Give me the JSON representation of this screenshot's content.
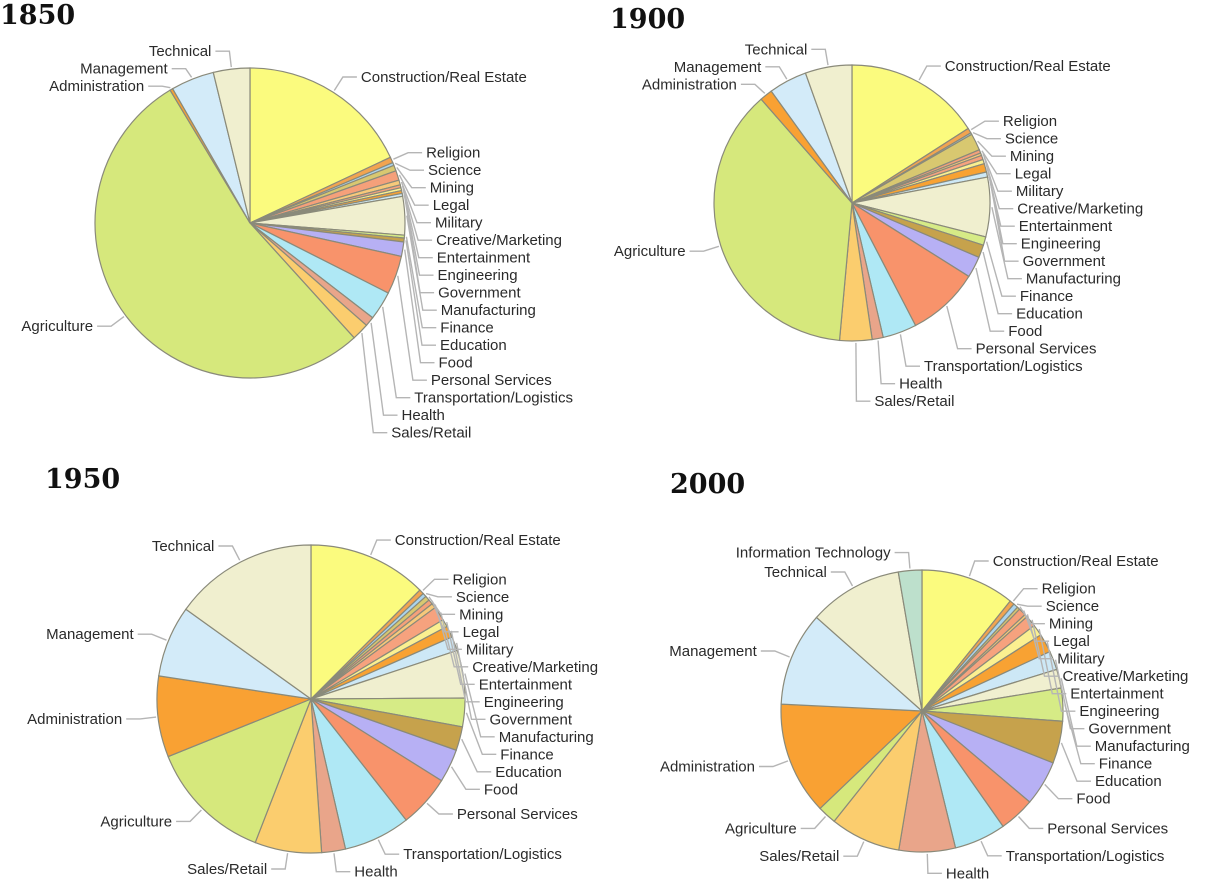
{
  "categories": [
    "Construction/Real Estate",
    "Religion",
    "Science",
    "Mining",
    "Legal",
    "Military",
    "Creative/Marketing",
    "Entertainment",
    "Engineering",
    "Government",
    "Manufacturing",
    "Finance",
    "Education",
    "Food",
    "Personal Services",
    "Transportation/Logistics",
    "Health",
    "Sales/Retail",
    "Agriculture",
    "Administration",
    "Management",
    "Technical",
    "Information Technology"
  ],
  "colors": {
    "Construction/Real Estate": "#fbfb7e",
    "Religion": "#f2a450",
    "Science": "#aad4ee",
    "Mining": "#d8c870",
    "Legal": "#f5a07a",
    "Military": "#f7c97a",
    "Creative/Marketing": "#f6a27e",
    "Entertainment": "#fbf090",
    "Engineering": "#f8a233",
    "Government": "#cde8f6",
    "Manufacturing": "#f0efcf",
    "Finance": "#d6eb86",
    "Education": "#c6a24c",
    "Food": "#b7b0f4",
    "Personal Services": "#f8936b",
    "Transportation/Logistics": "#afe8f5",
    "Health": "#e9a58a",
    "Sales/Retail": "#fbcd6e",
    "Agriculture": "#d6e87c",
    "Administration": "#f9a133",
    "Management": "#d3ebf9",
    "Technical": "#f0efcf",
    "Information Technology": "#bde0cc"
  },
  "chart_data": [
    {
      "type": "pie",
      "title": "1850",
      "slices": [
        {
          "label": "Construction/Real Estate",
          "value": 18.0
        },
        {
          "label": "Religion",
          "value": 0.6
        },
        {
          "label": "Science",
          "value": 0.3
        },
        {
          "label": "Mining",
          "value": 0.6
        },
        {
          "label": "Legal",
          "value": 1.0
        },
        {
          "label": "Military",
          "value": 0.5
        },
        {
          "label": "Creative/Marketing",
          "value": 0.3
        },
        {
          "label": "Entertainment",
          "value": 0.3
        },
        {
          "label": "Engineering",
          "value": 0.3
        },
        {
          "label": "Government",
          "value": 0.3
        },
        {
          "label": "Manufacturing",
          "value": 4.0
        },
        {
          "label": "Finance",
          "value": 0.3
        },
        {
          "label": "Education",
          "value": 0.4
        },
        {
          "label": "Food",
          "value": 1.5
        },
        {
          "label": "Personal Services",
          "value": 4.0
        },
        {
          "label": "Transportation/Logistics",
          "value": 3.0
        },
        {
          "label": "Health",
          "value": 1.0
        },
        {
          "label": "Sales/Retail",
          "value": 1.8
        },
        {
          "label": "Agriculture",
          "value": 53.0
        },
        {
          "label": "Administration",
          "value": 0.3
        },
        {
          "label": "Management",
          "value": 4.5
        },
        {
          "label": "Technical",
          "value": 3.8
        }
      ]
    },
    {
      "type": "pie",
      "title": "1900",
      "slices": [
        {
          "label": "Construction/Real Estate",
          "value": 16.0
        },
        {
          "label": "Religion",
          "value": 0.6
        },
        {
          "label": "Science",
          "value": 0.2
        },
        {
          "label": "Mining",
          "value": 2.0
        },
        {
          "label": "Legal",
          "value": 0.4
        },
        {
          "label": "Military",
          "value": 0.3
        },
        {
          "label": "Creative/Marketing",
          "value": 0.5
        },
        {
          "label": "Entertainment",
          "value": 0.5
        },
        {
          "label": "Engineering",
          "value": 1.0
        },
        {
          "label": "Government",
          "value": 0.6
        },
        {
          "label": "Manufacturing",
          "value": 7.0
        },
        {
          "label": "Finance",
          "value": 1.0
        },
        {
          "label": "Education",
          "value": 1.5
        },
        {
          "label": "Food",
          "value": 2.5
        },
        {
          "label": "Personal Services",
          "value": 8.5
        },
        {
          "label": "Transportation/Logistics",
          "value": 4.0
        },
        {
          "label": "Health",
          "value": 1.3
        },
        {
          "label": "Sales/Retail",
          "value": 3.8
        },
        {
          "label": "Agriculture",
          "value": 37.3
        },
        {
          "label": "Administration",
          "value": 1.5
        },
        {
          "label": "Management",
          "value": 4.5
        },
        {
          "label": "Technical",
          "value": 5.5
        }
      ]
    },
    {
      "type": "pie",
      "title": "1950",
      "slices": [
        {
          "label": "Construction/Real Estate",
          "value": 12.5
        },
        {
          "label": "Religion",
          "value": 0.5
        },
        {
          "label": "Science",
          "value": 0.4
        },
        {
          "label": "Mining",
          "value": 0.5
        },
        {
          "label": "Legal",
          "value": 0.5
        },
        {
          "label": "Military",
          "value": 0.5
        },
        {
          "label": "Creative/Marketing",
          "value": 1.5
        },
        {
          "label": "Entertainment",
          "value": 0.8
        },
        {
          "label": "Engineering",
          "value": 1.2
        },
        {
          "label": "Government",
          "value": 1.5
        },
        {
          "label": "Manufacturing",
          "value": 5.0
        },
        {
          "label": "Finance",
          "value": 3.0
        },
        {
          "label": "Education",
          "value": 2.5
        },
        {
          "label": "Food",
          "value": 3.5
        },
        {
          "label": "Personal Services",
          "value": 5.5
        },
        {
          "label": "Transportation/Logistics",
          "value": 7.0
        },
        {
          "label": "Health",
          "value": 2.5
        },
        {
          "label": "Sales/Retail",
          "value": 7.0
        },
        {
          "label": "Agriculture",
          "value": 13.0
        },
        {
          "label": "Administration",
          "value": 8.5
        },
        {
          "label": "Management",
          "value": 7.5
        },
        {
          "label": "Technical",
          "value": 15.1
        }
      ]
    },
    {
      "type": "pie",
      "title": "2000",
      "slices": [
        {
          "label": "Construction/Real Estate",
          "value": 10.0
        },
        {
          "label": "Religion",
          "value": 0.5
        },
        {
          "label": "Science",
          "value": 0.5
        },
        {
          "label": "Mining",
          "value": 0.3
        },
        {
          "label": "Legal",
          "value": 0.8
        },
        {
          "label": "Military",
          "value": 0.3
        },
        {
          "label": "Creative/Marketing",
          "value": 1.2
        },
        {
          "label": "Entertainment",
          "value": 1.2
        },
        {
          "label": "Engineering",
          "value": 2.0
        },
        {
          "label": "Government",
          "value": 2.0
        },
        {
          "label": "Manufacturing",
          "value": 2.0
        },
        {
          "label": "Finance",
          "value": 3.5
        },
        {
          "label": "Education",
          "value": 4.5
        },
        {
          "label": "Food",
          "value": 4.8
        },
        {
          "label": "Personal Services",
          "value": 3.8
        },
        {
          "label": "Transportation/Logistics",
          "value": 5.5
        },
        {
          "label": "Health",
          "value": 6.0
        },
        {
          "label": "Sales/Retail",
          "value": 7.5
        },
        {
          "label": "Agriculture",
          "value": 2.0
        },
        {
          "label": "Administration",
          "value": 12.0
        },
        {
          "label": "Management",
          "value": 10.0
        },
        {
          "label": "Technical",
          "value": 10.0
        },
        {
          "label": "Information Technology",
          "value": 2.5
        }
      ]
    }
  ]
}
